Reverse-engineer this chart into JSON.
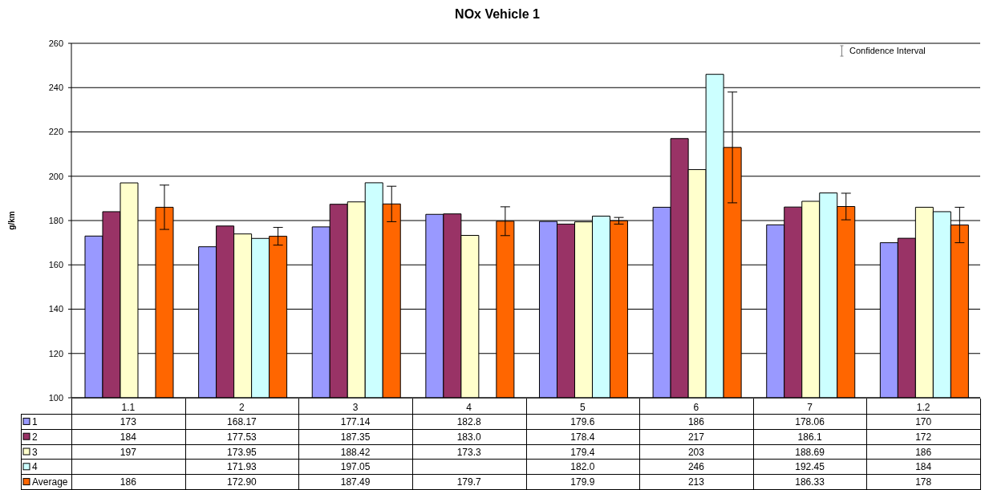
{
  "chart_data": {
    "type": "bar",
    "title": "NOx Vehicle 1",
    "ylabel": "g/km",
    "categories": [
      "1.1",
      "2",
      "3",
      "4",
      "5",
      "6",
      "7",
      "1.2"
    ],
    "series": [
      {
        "name": "1",
        "color": "#9999ff",
        "values": [
          173,
          168.17,
          177.14,
          182.8,
          179.6,
          186,
          178.06,
          170
        ],
        "value_labels": [
          "173",
          "168.17",
          "177.14",
          "182.8",
          "179.6",
          "186",
          "178.06",
          "170"
        ]
      },
      {
        "name": "2",
        "color": "#993366",
        "values": [
          184,
          177.53,
          187.35,
          183.0,
          178.4,
          217,
          186.1,
          172
        ],
        "value_labels": [
          "184",
          "177.53",
          "187.35",
          "183.0",
          "178.4",
          "217",
          "186.1",
          "172"
        ]
      },
      {
        "name": "3",
        "color": "#ffffcc",
        "values": [
          197,
          173.95,
          188.42,
          173.3,
          179.4,
          203,
          188.69,
          186
        ],
        "value_labels": [
          "197",
          "173.95",
          "188.42",
          "173.3",
          "179.4",
          "203",
          "188.69",
          "186"
        ]
      },
      {
        "name": "4",
        "color": "#ccffff",
        "values": [
          null,
          171.93,
          197.05,
          null,
          182.0,
          246,
          192.45,
          184
        ],
        "value_labels": [
          null,
          "171.93",
          "197.05",
          null,
          "182.0",
          "246",
          "192.45",
          "184"
        ]
      },
      {
        "name": "Average",
        "color": "#ff6600",
        "values": [
          186,
          172.9,
          187.49,
          179.7,
          179.9,
          213,
          186.33,
          178
        ],
        "value_labels": [
          "186",
          "172.90",
          "187.49",
          "179.7",
          "179.9",
          "213",
          "186.33",
          "178"
        ],
        "errors": [
          10,
          4,
          8,
          6.5,
          1.5,
          25,
          6,
          8
        ]
      }
    ],
    "ylim": [
      100,
      260
    ],
    "yticks": [
      100,
      120,
      140,
      160,
      180,
      200,
      220,
      240,
      260
    ],
    "grid": "y",
    "legend": "bottom",
    "annotations": [
      "Confidence Interval"
    ]
  }
}
